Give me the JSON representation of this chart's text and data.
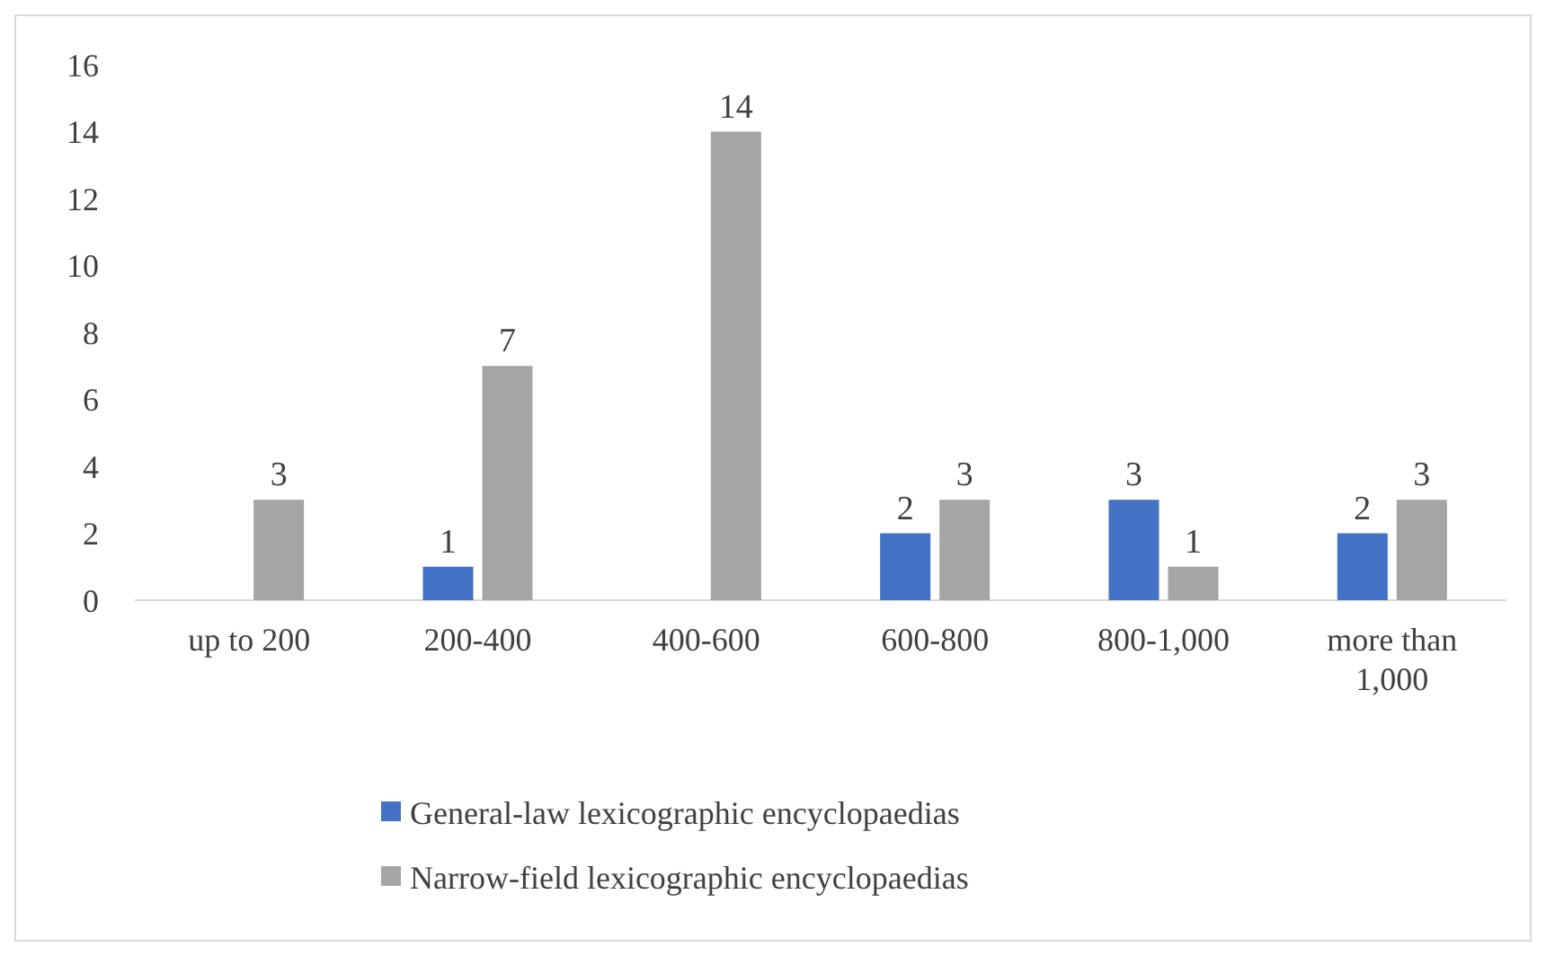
{
  "chart_data": {
    "type": "bar",
    "categories": [
      "up to 200",
      "200-400",
      "400-600",
      "600-800",
      "800-1,000",
      "more than 1,000"
    ],
    "series": [
      {
        "name": "General-law lexicographic encyclopaedias",
        "color": "#4472c4",
        "values": [
          null,
          1,
          null,
          2,
          3,
          2
        ]
      },
      {
        "name": "Narrow-field lexicographic encyclopaedias",
        "color": "#a5a5a5",
        "values": [
          3,
          7,
          14,
          3,
          1,
          3
        ]
      }
    ],
    "ylim": [
      0,
      16
    ],
    "yticks": [
      0,
      2,
      4,
      6,
      8,
      10,
      12,
      14,
      16
    ],
    "grid": false,
    "legend": "bottom",
    "data_labels": true
  }
}
